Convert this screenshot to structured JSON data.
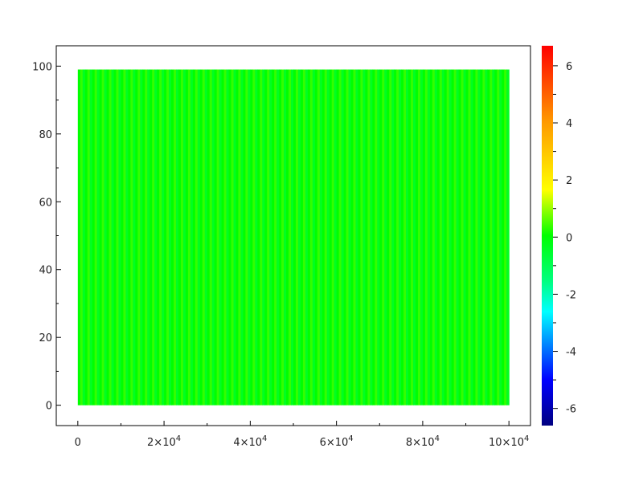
{
  "chart_data": {
    "type": "heatmap",
    "title": "",
    "xlabel": "",
    "ylabel": "",
    "xlim": [
      -5000,
      105000
    ],
    "ylim": [
      -6,
      106
    ],
    "data_x_extent": [
      0,
      100000
    ],
    "data_y_extent": [
      0,
      99
    ],
    "z_description_visible": "nearly all cells near 0 (green), thin vertical stripes alternating slightly above/below 0",
    "x_ticks": [
      {
        "value": 0,
        "label": "0",
        "mantissa": "",
        "exp": ""
      },
      {
        "value": 20000,
        "label": "",
        "mantissa": "2×10",
        "exp": "4"
      },
      {
        "value": 40000,
        "label": "",
        "mantissa": "4×10",
        "exp": "4"
      },
      {
        "value": 60000,
        "label": "",
        "mantissa": "6×10",
        "exp": "4"
      },
      {
        "value": 80000,
        "label": "",
        "mantissa": "8×10",
        "exp": "4"
      },
      {
        "value": 100000,
        "label": "",
        "mantissa": "10×10",
        "exp": "4"
      }
    ],
    "y_ticks": [
      {
        "value": 0,
        "label": "0"
      },
      {
        "value": 20,
        "label": "20"
      },
      {
        "value": 40,
        "label": "40"
      },
      {
        "value": 60,
        "label": "60"
      },
      {
        "value": 80,
        "label": "80"
      },
      {
        "value": 100,
        "label": "100"
      }
    ],
    "colorbar": {
      "colormap": "jet-like (darkblue-blue-cyan-green-yellow-red)",
      "zlim": [
        -6.6,
        6.7
      ],
      "ticks": [
        {
          "value": 6,
          "label": "6"
        },
        {
          "value": 4,
          "label": "4"
        },
        {
          "value": 2,
          "label": "2"
        },
        {
          "value": 0,
          "label": "0"
        },
        {
          "value": -2,
          "label": "-2"
        },
        {
          "value": -4,
          "label": "-4"
        },
        {
          "value": -6,
          "label": "-6"
        }
      ]
    },
    "grid": false,
    "colors": {
      "stripe_a": "#00ff00",
      "stripe_b": "#33ff00",
      "stripe_c": "#00ff22"
    }
  }
}
